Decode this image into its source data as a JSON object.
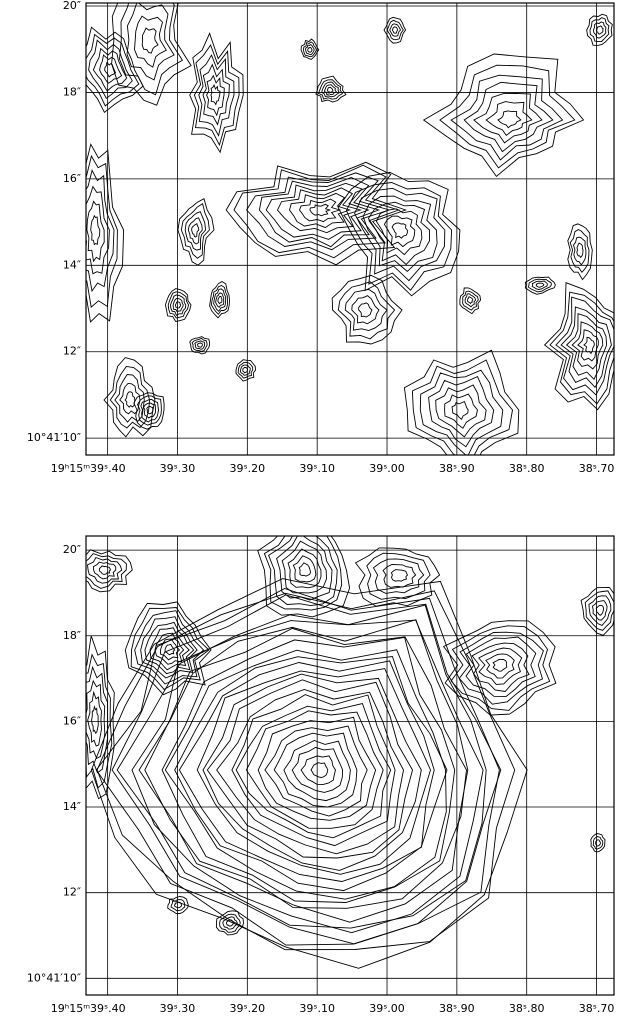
{
  "chart_data": [
    {
      "type": "contour",
      "xlim": [
        39.431,
        38.675
      ],
      "ylim": [
        9.61,
        20.07
      ],
      "xticks": [
        {
          "value": 39.4,
          "label": "19ʰ15ᵐ39ˢ.40"
        },
        {
          "value": 39.3,
          "label": "39ˢ.30"
        },
        {
          "value": 39.2,
          "label": "39ˢ.20"
        },
        {
          "value": 39.1,
          "label": "39ˢ.10"
        },
        {
          "value": 39.0,
          "label": "39ˢ.00"
        },
        {
          "value": 38.9,
          "label": "38ˢ.90"
        },
        {
          "value": 38.8,
          "label": "38ˢ.80"
        },
        {
          "value": 38.7,
          "label": "38ˢ.70"
        }
      ],
      "yticks": [
        {
          "value": 10,
          "label": "10°41′10″"
        },
        {
          "value": 12,
          "label": "12″"
        },
        {
          "value": 14,
          "label": "14″"
        },
        {
          "value": 16,
          "label": "16″"
        },
        {
          "value": 18,
          "label": "18″"
        },
        {
          "value": 20,
          "label": "20″"
        }
      ],
      "grid": true
    },
    {
      "type": "contour",
      "xlim": [
        39.431,
        38.675
      ],
      "ylim": [
        9.61,
        20.33
      ],
      "xticks": [
        {
          "value": 39.4,
          "label": "19ʰ15ᵐ39ˢ.40"
        },
        {
          "value": 39.3,
          "label": "39ˢ.30"
        },
        {
          "value": 39.2,
          "label": "39ˢ.20"
        },
        {
          "value": 39.1,
          "label": "39ˢ.10"
        },
        {
          "value": 39.0,
          "label": "39ˢ.00"
        },
        {
          "value": 38.9,
          "label": "38ˢ.90"
        },
        {
          "value": 38.8,
          "label": "38ˢ.80"
        },
        {
          "value": 38.7,
          "label": "38ˢ.70"
        }
      ],
      "yticks": [
        {
          "value": 10,
          "label": "10°41′10″"
        },
        {
          "value": 12,
          "label": "12″"
        },
        {
          "value": 14,
          "label": "14″"
        },
        {
          "value": 16,
          "label": "16″"
        },
        {
          "value": 18,
          "label": "18″"
        },
        {
          "value": 20,
          "label": "20″"
        }
      ],
      "grid": true
    }
  ]
}
